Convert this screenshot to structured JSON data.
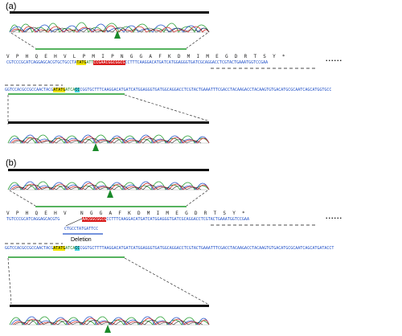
{
  "panel_a": {
    "label": "(a)",
    "aa_row": "V P H Q E H V L P M I P N G G A F K D M I M E G D R T S Y *",
    "seq1_pre": "CGTCCCGCATCAGGAGCACGTGCTGCCTA",
    "seq1_yellow": "TATG",
    "seq1_mid": "ATT",
    "seq1_red": "CCGAACGGCGGCG",
    "seq1_post": "CCTTTCAAGGACATGATCATGGAGGGTGATCGCAGGACCTCGTACTGAAATGGTCCGAA",
    "dots": "......",
    "seq2_pre": "GGTCCACGCCGCCAACTACG",
    "seq2_yellow": "ATATG",
    "seq2_mid": "ATCA",
    "seq2_cyan": "CC",
    "seq2_post": "CGGTGCTTTCAAGGACATGATCATGGAGGGTGATGGCAGGACCTCGTACTGAAATTTCGACCTACAAGACCTACAAGTGTGACATGCGCAATCAGCATGGTGCC"
  },
  "panel_b": {
    "label": "(b)",
    "aa_row1": "V P H Q E H V",
    "aa_row2": "N G G A F K D M I M E G D R T S Y *",
    "seq1_pre": "TGTCCCGCATCAGGAGCACGTG",
    "seq1_red": "AACGGCGGCG",
    "seq1_post": "CCTTTCAAGGACATGATCATGGAGGGTGATCGCAGGACCTCGTACTGAAATGGTCCGAA",
    "dots": "......",
    "deletion_seq": "CTGCCTATGATTCC",
    "deletion_label": "Deletion",
    "seq2_pre": "GGTCCACGCCGCCAACTACG",
    "seq2_yellow": "ATATG",
    "seq2_mid": "ATCA",
    "seq2_cyan": "CC",
    "seq2_post": "CGGTGCTTTTAAGGACATGATCATGGAGGGTGATGGCAGGACCTCGTACTGAAATTTCGACCTACAAGACCTACAAGTGTGACATGCGCAATCAGCATGATACCT"
  },
  "colors": {
    "trace_green": "#1e9a2a",
    "trace_blue": "#2050c8",
    "trace_red": "#d12020",
    "trace_black": "#111111",
    "marker_green": "#1a8a2a",
    "underline_green": "#1e9a2a",
    "highlight_yellow": "#f3e600",
    "highlight_red": "#d81b1b",
    "highlight_cyan": "#46d6df"
  }
}
